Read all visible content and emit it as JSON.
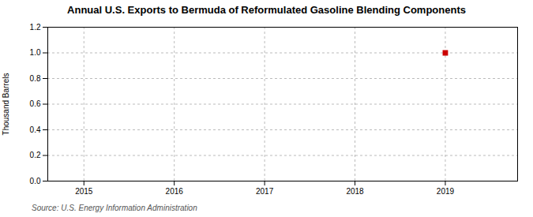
{
  "chart_data": {
    "type": "scatter",
    "title": "Annual U.S. Exports to Bermuda of Reformulated Gasoline Blending Components",
    "ylabel": "Thousand Barrels",
    "source": "Source: U.S. Energy Information Administration",
    "x": [
      2019
    ],
    "values": [
      1.0
    ],
    "color": "#cc0000",
    "marker": "square",
    "xlim": [
      2014.6,
      2019.8
    ],
    "ylim": [
      0,
      1.2
    ],
    "xticks": [
      2015,
      2016,
      2017,
      2018,
      2019
    ],
    "yticks": [
      {
        "value": 0,
        "label": "0.0"
      },
      0.2,
      0.4,
      0.6,
      0.8,
      {
        "value": 1.0,
        "label": "1.0"
      },
      1.2
    ],
    "grid": true
  }
}
